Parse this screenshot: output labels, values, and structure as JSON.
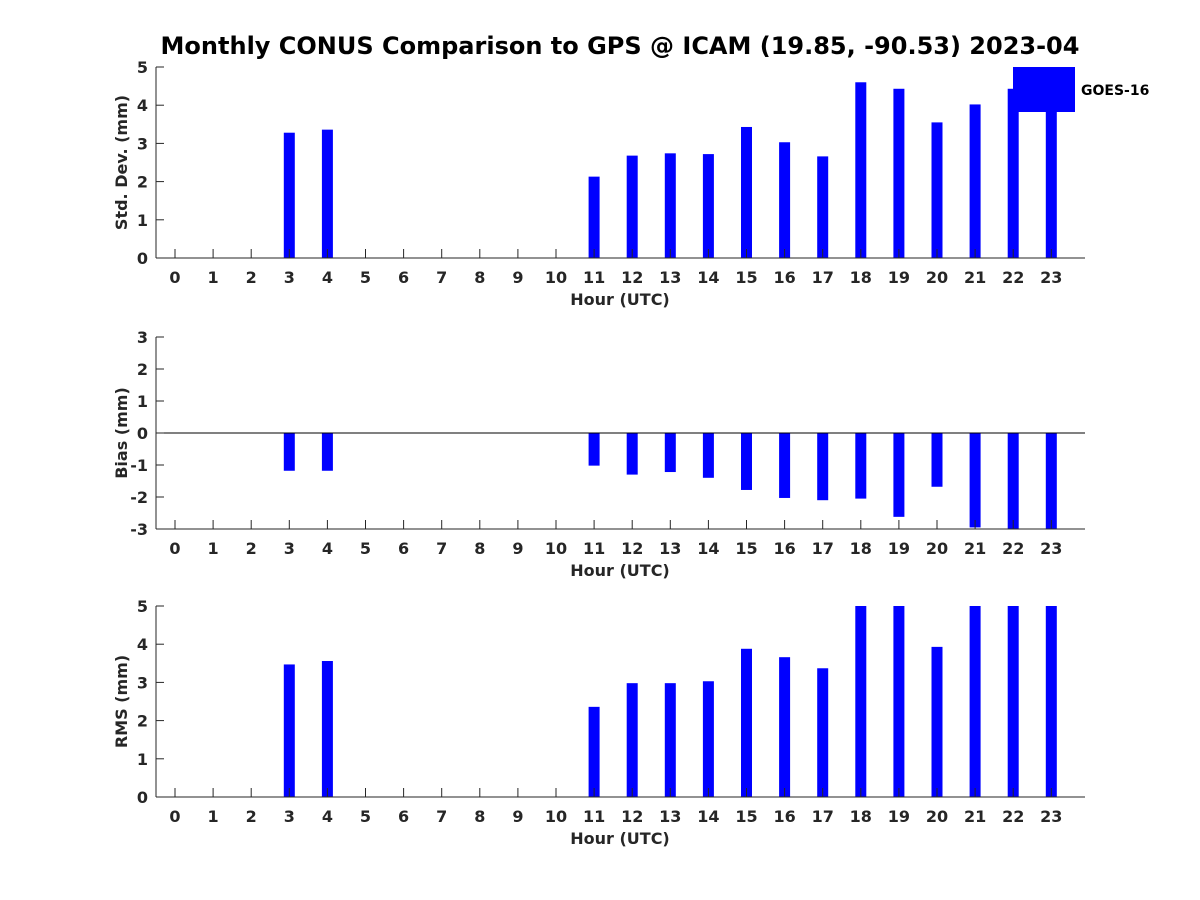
{
  "title": "Monthly CONUS Comparison to GPS @ ICAM (19.85, -90.53) 2023-04",
  "bar_color": "#0000ff",
  "chart_data": [
    {
      "type": "bar",
      "xlabel": "Hour (UTC)",
      "ylabel": "Std. Dev. (mm)",
      "ylim": [
        0,
        5
      ],
      "yticks": [
        0,
        1,
        2,
        3,
        4,
        5
      ],
      "categories": [
        0,
        1,
        2,
        3,
        4,
        5,
        6,
        7,
        8,
        9,
        10,
        11,
        12,
        13,
        14,
        15,
        16,
        17,
        18,
        19,
        20,
        21,
        22,
        23
      ],
      "series": [
        {
          "name": "GOES-16",
          "values": [
            null,
            null,
            null,
            3.28,
            3.36,
            null,
            null,
            null,
            null,
            null,
            null,
            2.13,
            2.68,
            2.74,
            2.72,
            3.43,
            3.03,
            2.66,
            4.6,
            4.43,
            3.55,
            4.02,
            4.43,
            4.13
          ]
        }
      ],
      "legend": "top-right"
    },
    {
      "type": "bar",
      "xlabel": "Hour (UTC)",
      "ylabel": "Bias (mm)",
      "ylim": [
        -3,
        3
      ],
      "yticks": [
        -3,
        -2,
        -1,
        0,
        1,
        2,
        3
      ],
      "categories": [
        0,
        1,
        2,
        3,
        4,
        5,
        6,
        7,
        8,
        9,
        10,
        11,
        12,
        13,
        14,
        15,
        16,
        17,
        18,
        19,
        20,
        21,
        22,
        23
      ],
      "series": [
        {
          "name": "GOES-16",
          "values": [
            null,
            null,
            null,
            -1.18,
            -1.18,
            null,
            null,
            null,
            null,
            null,
            null,
            -1.02,
            -1.3,
            -1.22,
            -1.4,
            -1.78,
            -2.03,
            -2.1,
            -2.05,
            -2.62,
            -1.68,
            -2.95,
            -3.0,
            -3.0
          ]
        }
      ]
    },
    {
      "type": "bar",
      "xlabel": "Hour (UTC)",
      "ylabel": "RMS (mm)",
      "ylim": [
        0,
        5
      ],
      "yticks": [
        0,
        1,
        2,
        3,
        4,
        5
      ],
      "categories": [
        0,
        1,
        2,
        3,
        4,
        5,
        6,
        7,
        8,
        9,
        10,
        11,
        12,
        13,
        14,
        15,
        16,
        17,
        18,
        19,
        20,
        21,
        22,
        23
      ],
      "series": [
        {
          "name": "GOES-16",
          "values": [
            null,
            null,
            null,
            3.47,
            3.56,
            null,
            null,
            null,
            null,
            null,
            null,
            2.36,
            2.98,
            2.98,
            3.03,
            3.88,
            3.66,
            3.37,
            5.0,
            5.0,
            3.93,
            5.0,
            5.0,
            5.0
          ]
        }
      ]
    }
  ]
}
